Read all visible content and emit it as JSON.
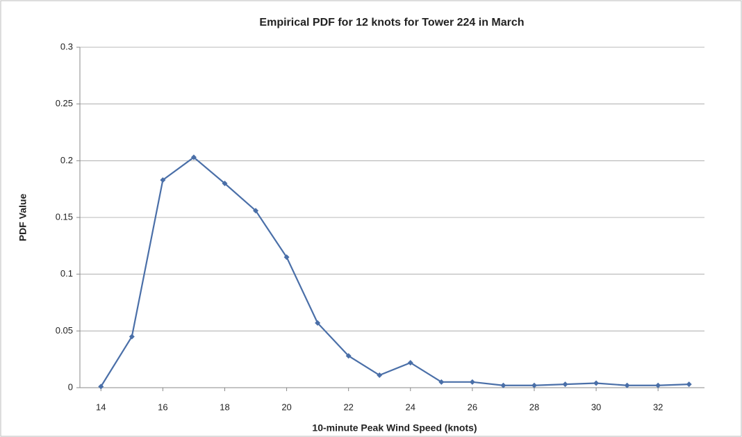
{
  "chart_data": {
    "type": "line",
    "title": "Empirical PDF   for 12 knots for Tower 224 in March",
    "xlabel": "10-minute Peak Wind Speed (knots)",
    "ylabel": "PDF Value",
    "x": [
      14,
      15,
      16,
      17,
      18,
      19,
      20,
      21,
      22,
      23,
      24,
      25,
      26,
      27,
      28,
      29,
      30,
      31,
      32,
      33
    ],
    "values": [
      0.001,
      0.045,
      0.183,
      0.203,
      0.18,
      0.156,
      0.115,
      0.057,
      0.028,
      0.011,
      0.022,
      0.005,
      0.005,
      0.002,
      0.002,
      0.003,
      0.004,
      0.002,
      0.002,
      0.003
    ],
    "color": "#4a6fa8",
    "xlim": [
      13.5,
      33.5
    ],
    "xticks": [
      14,
      16,
      18,
      20,
      22,
      24,
      26,
      28,
      30,
      32
    ],
    "ylim": [
      0,
      0.3
    ],
    "yticks": [
      0,
      0.05,
      0.1,
      0.15,
      0.2,
      0.25,
      0.3
    ],
    "grid": true
  }
}
